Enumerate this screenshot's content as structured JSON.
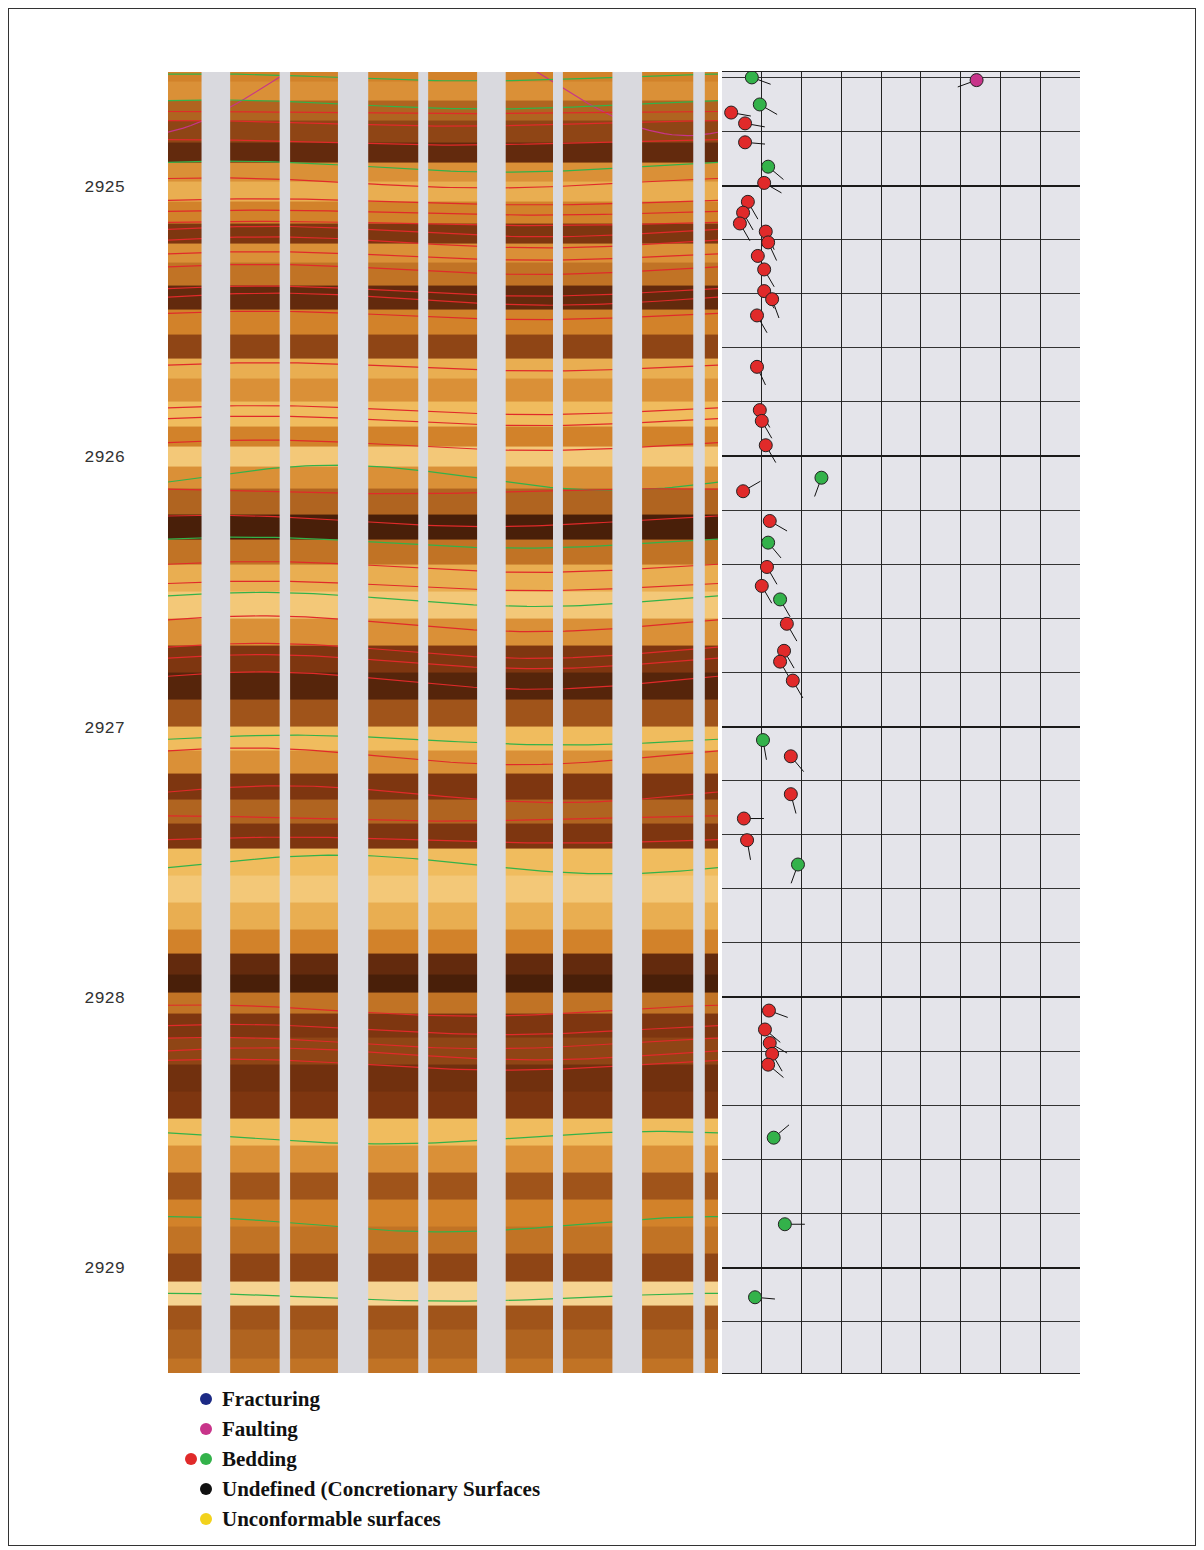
{
  "chart_data": {
    "type": "tadpole",
    "ylim": [
      2924.58,
      2929.39
    ],
    "yticks": [
      2925,
      2926,
      2927,
      2928,
      2929
    ],
    "xlim": [
      0,
      90
    ],
    "xticks": [
      0,
      10,
      20,
      30,
      40,
      50,
      60,
      70,
      80,
      90
    ],
    "tick_labels": "y",
    "grid": true,
    "image": {
      "xlim": [
        0,
        360
      ],
      "tone_range": [
        0,
        1
      ],
      "depths": [
        2924.58,
        2924.65,
        2924.72,
        2924.8,
        2924.88,
        2924.95,
        2925.02,
        2925.1,
        2925.18,
        2925.25,
        2925.32,
        2925.42,
        2925.5,
        2925.6,
        2925.68,
        2925.75,
        2925.85,
        2925.93,
        2926.0,
        2926.08,
        2926.16,
        2926.27,
        2926.35,
        2926.45,
        2926.55,
        2926.65,
        2926.75,
        2926.85,
        2926.95,
        2927.05,
        2927.13,
        2927.22,
        2927.32,
        2927.4,
        2927.5,
        2927.6,
        2927.7,
        2927.8,
        2927.88,
        2927.95,
        2928.02,
        2928.1,
        2928.2,
        2928.3,
        2928.4,
        2928.5,
        2928.6,
        2928.7,
        2928.8,
        2928.9,
        2929.0,
        2929.1,
        2929.18,
        2929.28,
        2929.39
      ],
      "tones": [
        0.55,
        0.6,
        0.45,
        0.35,
        0.2,
        0.6,
        0.7,
        0.55,
        0.3,
        0.6,
        0.5,
        0.2,
        0.55,
        0.35,
        0.7,
        0.6,
        0.75,
        0.55,
        0.8,
        0.6,
        0.45,
        0.1,
        0.5,
        0.7,
        0.8,
        0.6,
        0.3,
        0.15,
        0.4,
        0.75,
        0.6,
        0.3,
        0.45,
        0.3,
        0.75,
        0.8,
        0.7,
        0.55,
        0.2,
        0.1,
        0.5,
        0.3,
        0.35,
        0.25,
        0.3,
        0.75,
        0.6,
        0.4,
        0.55,
        0.5,
        0.35,
        0.85,
        0.4,
        0.45,
        0.5
      ]
    },
    "legend": "bottom",
    "series": [
      {
        "name": "Fracturing",
        "colors": [
          "#1c2a85"
        ],
        "points": []
      },
      {
        "name": "Faulting",
        "colors": [
          "#c8348a"
        ],
        "points": [
          {
            "depth": 2924.61,
            "dip": 64,
            "azimuth": 250
          }
        ]
      },
      {
        "name": "Bedding",
        "colors": [
          "#e02a2a",
          "#33b24a"
        ],
        "points": [
          {
            "depth": 2924.6,
            "dip": 7.5,
            "azimuth": 110,
            "color": "#33b24a"
          },
          {
            "depth": 2924.7,
            "dip": 9.5,
            "azimuth": 120,
            "color": "#33b24a"
          },
          {
            "depth": 2924.73,
            "dip": 2.3,
            "azimuth": 100,
            "color": "#e02a2a"
          },
          {
            "depth": 2924.77,
            "dip": 5.8,
            "azimuth": 100,
            "color": "#e02a2a"
          },
          {
            "depth": 2924.84,
            "dip": 5.8,
            "azimuth": 95,
            "color": "#e02a2a"
          },
          {
            "depth": 2924.93,
            "dip": 11.6,
            "azimuth": 130,
            "color": "#33b24a"
          },
          {
            "depth": 2924.99,
            "dip": 10.6,
            "azimuth": 120,
            "color": "#e02a2a"
          },
          {
            "depth": 2925.06,
            "dip": 6.5,
            "azimuth": 150,
            "color": "#e02a2a"
          },
          {
            "depth": 2925.1,
            "dip": 5.3,
            "azimuth": 150,
            "color": "#e02a2a"
          },
          {
            "depth": 2925.14,
            "dip": 4.5,
            "azimuth": 150,
            "color": "#e02a2a"
          },
          {
            "depth": 2925.17,
            "dip": 11,
            "azimuth": 155,
            "color": "#e02a2a"
          },
          {
            "depth": 2925.21,
            "dip": 11.6,
            "azimuth": 155,
            "color": "#e02a2a"
          },
          {
            "depth": 2925.26,
            "dip": 9,
            "azimuth": 150,
            "color": "#e02a2a"
          },
          {
            "depth": 2925.31,
            "dip": 10.6,
            "azimuth": 150,
            "color": "#e02a2a"
          },
          {
            "depth": 2925.39,
            "dip": 10.6,
            "azimuth": 150,
            "color": "#e02a2a"
          },
          {
            "depth": 2925.42,
            "dip": 12.6,
            "azimuth": 160,
            "color": "#e02a2a"
          },
          {
            "depth": 2925.48,
            "dip": 8.8,
            "azimuth": 150,
            "color": "#e02a2a"
          },
          {
            "depth": 2925.67,
            "dip": 8.8,
            "azimuth": 155,
            "color": "#e02a2a"
          },
          {
            "depth": 2925.83,
            "dip": 9.5,
            "azimuth": 150,
            "color": "#e02a2a"
          },
          {
            "depth": 2925.87,
            "dip": 10,
            "azimuth": 150,
            "color": "#e02a2a"
          },
          {
            "depth": 2925.96,
            "dip": 11,
            "azimuth": 150,
            "color": "#e02a2a"
          },
          {
            "depth": 2926.08,
            "dip": 25,
            "azimuth": 200,
            "color": "#33b24a"
          },
          {
            "depth": 2926.13,
            "dip": 5.3,
            "azimuth": 60,
            "color": "#e02a2a"
          },
          {
            "depth": 2926.24,
            "dip": 12,
            "azimuth": 120,
            "color": "#e02a2a"
          },
          {
            "depth": 2926.32,
            "dip": 11.6,
            "azimuth": 140,
            "color": "#33b24a"
          },
          {
            "depth": 2926.41,
            "dip": 11.3,
            "azimuth": 150,
            "color": "#e02a2a"
          },
          {
            "depth": 2926.48,
            "dip": 10,
            "azimuth": 150,
            "color": "#e02a2a"
          },
          {
            "depth": 2926.53,
            "dip": 14.6,
            "azimuth": 150,
            "color": "#33b24a"
          },
          {
            "depth": 2926.62,
            "dip": 16.3,
            "azimuth": 150,
            "color": "#e02a2a"
          },
          {
            "depth": 2926.72,
            "dip": 15.6,
            "azimuth": 150,
            "color": "#e02a2a"
          },
          {
            "depth": 2926.76,
            "dip": 14.6,
            "azimuth": 150,
            "color": "#e02a2a"
          },
          {
            "depth": 2926.83,
            "dip": 17.8,
            "azimuth": 150,
            "color": "#e02a2a"
          },
          {
            "depth": 2927.05,
            "dip": 10.3,
            "azimuth": 170,
            "color": "#33b24a"
          },
          {
            "depth": 2927.11,
            "dip": 17.3,
            "azimuth": 140,
            "color": "#e02a2a"
          },
          {
            "depth": 2927.25,
            "dip": 17.3,
            "azimuth": 165,
            "color": "#e02a2a"
          },
          {
            "depth": 2927.34,
            "dip": 5.5,
            "azimuth": 90,
            "color": "#e02a2a"
          },
          {
            "depth": 2927.42,
            "dip": 6.3,
            "azimuth": 170,
            "color": "#e02a2a"
          },
          {
            "depth": 2927.51,
            "dip": 19.1,
            "azimuth": 200,
            "color": "#33b24a"
          },
          {
            "depth": 2928.05,
            "dip": 11.8,
            "azimuth": 110,
            "color": "#e02a2a"
          },
          {
            "depth": 2928.12,
            "dip": 10.8,
            "azimuth": 130,
            "color": "#e02a2a"
          },
          {
            "depth": 2928.17,
            "dip": 12,
            "azimuth": 120,
            "color": "#e02a2a"
          },
          {
            "depth": 2928.21,
            "dip": 12.6,
            "azimuth": 150,
            "color": "#e02a2a"
          },
          {
            "depth": 2928.25,
            "dip": 11.6,
            "azimuth": 130,
            "color": "#e02a2a"
          },
          {
            "depth": 2928.52,
            "dip": 13,
            "azimuth": 50,
            "color": "#33b24a"
          },
          {
            "depth": 2928.84,
            "dip": 15.8,
            "azimuth": 90,
            "color": "#33b24a"
          },
          {
            "depth": 2929.11,
            "dip": 8.3,
            "azimuth": 95,
            "color": "#33b24a"
          }
        ]
      },
      {
        "name": "Undefined (Concretionary Surfaces",
        "colors": [
          "#111111"
        ],
        "points": []
      },
      {
        "name": "Unconformable surfaces",
        "colors": [
          "#f2d21c"
        ],
        "points": []
      }
    ]
  }
}
